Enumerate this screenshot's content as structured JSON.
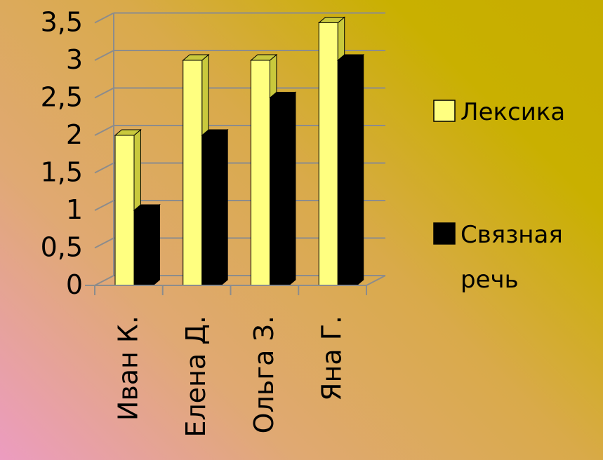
{
  "chart_data": {
    "type": "bar",
    "categories": [
      "Иван К.",
      "Елена Д.",
      "Ольга З.",
      "Яна Г."
    ],
    "series": [
      {
        "name": "Лексика",
        "values": [
          2,
          3,
          3,
          3.5
        ],
        "color": "#ffff80",
        "side_color": "#c9c93c"
      },
      {
        "name": "Связная речь",
        "values": [
          1,
          2,
          2.5,
          3
        ],
        "color": "#000000",
        "side_color": "#000000"
      }
    ],
    "legend_lines": [
      [
        "Лексика"
      ],
      [
        "Связная",
        "речь"
      ]
    ],
    "ylim": [
      0,
      3.5
    ],
    "yticks": [
      "0",
      "0,5",
      "1",
      "1,5",
      "2",
      "2,5",
      "3",
      "3,5"
    ],
    "grid": true,
    "legend_position": "right",
    "gridline_color": "#8c8c8c"
  }
}
